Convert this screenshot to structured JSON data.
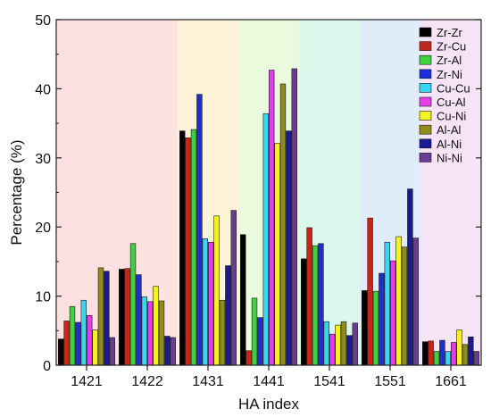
{
  "chart_data": {
    "type": "bar",
    "title": "",
    "xlabel": "HA index",
    "ylabel": "Percentage (%)",
    "ylim": [
      0,
      50
    ],
    "yticks": [
      0,
      10,
      20,
      30,
      40,
      50
    ],
    "grid": false,
    "legend_position": "top-right",
    "categories": [
      "1421",
      "1422",
      "1431",
      "1441",
      "1541",
      "1551",
      "1661"
    ],
    "band_colors": [
      "#fde0e0",
      "#fde2e2",
      "#fdf3d8",
      "#e9fbdc",
      "#dcf7ec",
      "#e1ecfb",
      "#f7e3f6"
    ],
    "series": [
      {
        "name": "Zr-Zr",
        "color": "#000000",
        "values": [
          3.8,
          13.9,
          33.9,
          18.9,
          15.4,
          10.8,
          3.4
        ]
      },
      {
        "name": "Zr-Cu",
        "color": "#c0281c",
        "values": [
          6.4,
          14.0,
          32.9,
          2.1,
          19.9,
          21.3,
          3.5
        ]
      },
      {
        "name": "Zr-Al",
        "color": "#3fd13f",
        "values": [
          8.5,
          17.6,
          34.1,
          9.7,
          17.3,
          10.7,
          2.0
        ]
      },
      {
        "name": "Zr-Ni",
        "color": "#1c2fd6",
        "values": [
          6.2,
          13.1,
          39.2,
          6.9,
          17.6,
          13.3,
          3.6
        ]
      },
      {
        "name": "Cu-Cu",
        "color": "#38d6f5",
        "values": [
          9.4,
          9.9,
          18.3,
          36.4,
          6.3,
          17.8,
          2.0
        ]
      },
      {
        "name": "Cu-Al",
        "color": "#e040e8",
        "values": [
          7.2,
          9.2,
          17.8,
          42.7,
          4.5,
          15.1,
          3.3
        ]
      },
      {
        "name": "Cu-Ni",
        "color": "#f4f227",
        "values": [
          5.1,
          11.4,
          21.6,
          32.1,
          5.8,
          18.6,
          5.1
        ]
      },
      {
        "name": "Al-Al",
        "color": "#8f8b1c",
        "values": [
          14.1,
          9.3,
          9.4,
          40.7,
          6.3,
          17.1,
          3.0
        ]
      },
      {
        "name": "Al-Ni",
        "color": "#1a1a96",
        "values": [
          13.6,
          4.2,
          14.4,
          33.9,
          4.3,
          25.5,
          4.1
        ]
      },
      {
        "name": "Ni-Ni",
        "color": "#6a3d94",
        "values": [
          4.0,
          4.0,
          22.4,
          42.9,
          6.1,
          18.4,
          2.0
        ]
      }
    ]
  }
}
